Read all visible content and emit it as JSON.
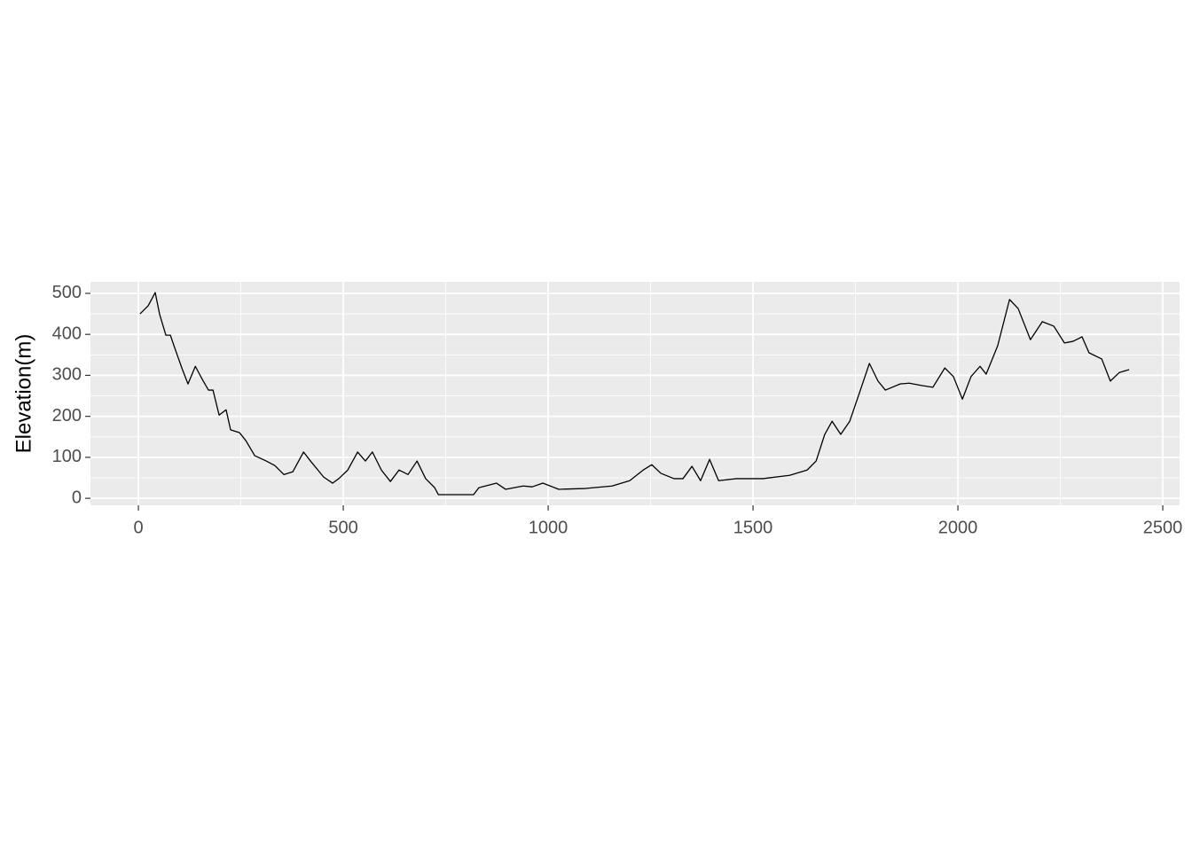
{
  "chart_data": {
    "type": "line",
    "y_label": "Elevation(m)",
    "x": [
      4,
      24,
      41,
      52,
      67,
      78,
      89,
      106,
      121,
      139,
      156,
      171,
      182,
      197,
      214,
      225,
      247,
      262,
      284,
      312,
      333,
      355,
      377,
      403,
      420,
      452,
      474,
      489,
      511,
      535,
      554,
      571,
      593,
      615,
      636,
      658,
      680,
      701,
      723,
      732,
      818,
      831,
      874,
      896,
      939,
      961,
      987,
      1026,
      1091,
      1156,
      1199,
      1232,
      1253,
      1275,
      1307,
      1329,
      1351,
      1372,
      1394,
      1416,
      1459,
      1524,
      1589,
      1632,
      1654,
      1675,
      1693,
      1714,
      1736,
      1762,
      1784,
      1805,
      1823,
      1859,
      1881,
      1913,
      1939,
      1968,
      1989,
      2011,
      2032,
      2054,
      2069,
      2097,
      2126,
      2147,
      2177,
      2206,
      2234,
      2260,
      2281,
      2303,
      2320,
      2351,
      2372,
      2394,
      2418
    ],
    "series": [
      {
        "color": "#000000",
        "values": [
          450,
          470,
          502,
          448,
          398,
          398,
          366,
          318,
          279,
          322,
          290,
          264,
          264,
          203,
          216,
          167,
          160,
          141,
          104,
          91,
          80,
          58,
          65,
          113,
          91,
          52,
          37,
          48,
          69,
          113,
          91,
          113,
          69,
          41,
          69,
          58,
          91,
          48,
          26,
          9,
          9,
          26,
          37,
          22,
          30,
          28,
          37,
          22,
          24,
          30,
          43,
          69,
          82,
          61,
          48,
          48,
          78,
          43,
          95,
          43,
          48,
          48,
          56,
          69,
          91,
          156,
          188,
          156,
          188,
          264,
          329,
          286,
          264,
          279,
          281,
          275,
          271,
          318,
          297,
          242,
          297,
          322,
          303,
          372,
          485,
          463,
          387,
          431,
          420,
          379,
          383,
          394,
          355,
          340,
          286,
          307,
          314
        ]
      }
    ],
    "xlim": [
      -117,
      2541
    ],
    "ylim": [
      -17,
      528
    ],
    "xticks": [
      0,
      500,
      1000,
      1500,
      2000,
      2500
    ],
    "yticks": [
      0,
      100,
      200,
      300,
      400,
      500
    ],
    "xminorticks": [
      250,
      750,
      1250,
      1750,
      2250
    ],
    "yminorticks": [
      50,
      150,
      250,
      350,
      450
    ],
    "grid": true,
    "panel_color": "#ebebeb"
  }
}
